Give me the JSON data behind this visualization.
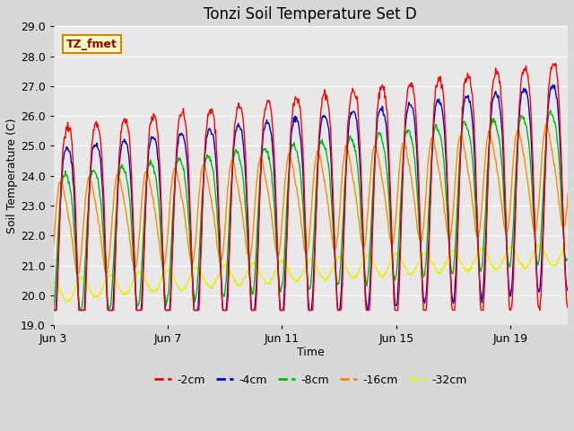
{
  "title": "Tonzi Soil Temperature Set D",
  "xlabel": "Time",
  "ylabel": "Soil Temperature (C)",
  "ylim": [
    19.0,
    29.0
  ],
  "yticks": [
    19.0,
    20.0,
    21.0,
    22.0,
    23.0,
    24.0,
    25.0,
    26.0,
    27.0,
    28.0,
    29.0
  ],
  "xtick_labels": [
    "Jun 3",
    "Jun 7",
    "Jun 11",
    "Jun 15",
    "Jun 19"
  ],
  "xtick_positions": [
    0,
    4,
    8,
    12,
    16
  ],
  "legend_labels": [
    "-2cm",
    "-4cm",
    "-8cm",
    "-16cm",
    "-32cm"
  ],
  "legend_colors": [
    "#ff0000",
    "#0000cc",
    "#00bb00",
    "#ff8800",
    "#eeee00"
  ],
  "annotation_text": "TZ_fmet",
  "annotation_bgcolor": "#ffffcc",
  "annotation_edgecolor": "#cc8800",
  "fig_facecolor": "#d8d8d8",
  "ax_facecolor": "#e8e8e8",
  "title_fontsize": 12,
  "axis_fontsize": 9,
  "tick_fontsize": 9,
  "days": 18,
  "pts_per_day": 48,
  "base_temp": 22.5,
  "trend_total": 0.5
}
